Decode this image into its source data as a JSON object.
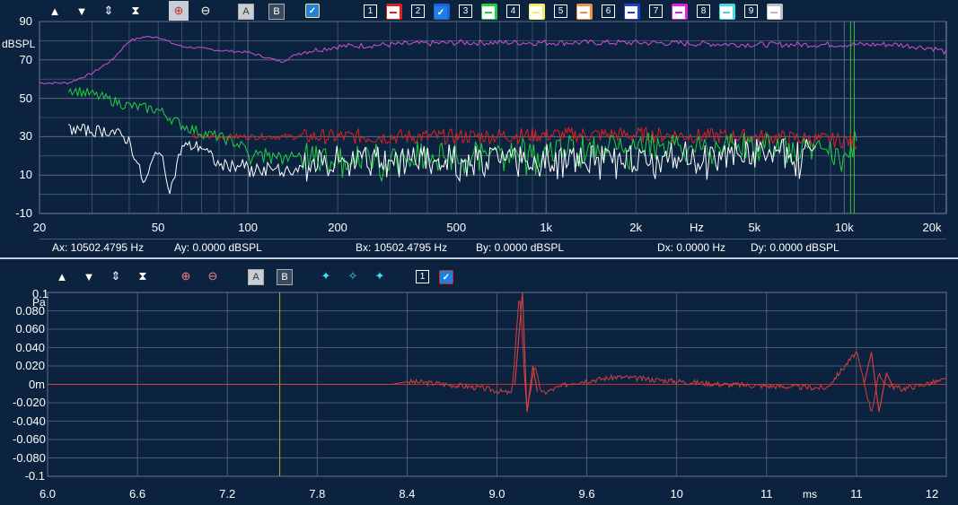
{
  "colors": {
    "background": "#0c2340",
    "grid": "#8a96a6",
    "trace_magenta": "#d050d0",
    "trace_red": "#e02020",
    "trace_green": "#20d040",
    "trace_white": "#ffffff",
    "trace_ir": "#d04040",
    "cursor_green": "#40c040"
  },
  "top_toolbar": {
    "icons": [
      "move-up-icon",
      "move-down-icon",
      "expand-vertical-icon",
      "fit-vertical-icon",
      "zoom-in-icon",
      "zoom-out-icon"
    ],
    "cursor_a": "A",
    "cursor_b": "B",
    "channels": [
      {
        "num": "1",
        "color": "#e02020",
        "checked": false
      },
      {
        "num": "2",
        "color": "#2060e0",
        "checked": true
      },
      {
        "num": "3",
        "color": "#20d040",
        "checked": false
      },
      {
        "num": "4",
        "color": "#f0f060",
        "checked": false
      },
      {
        "num": "5",
        "color": "#f09040",
        "checked": false
      },
      {
        "num": "6",
        "color": "#2040d0",
        "checked": false
      },
      {
        "num": "7",
        "color": "#e020e0",
        "checked": false
      },
      {
        "num": "8",
        "color": "#40e0e0",
        "checked": false
      },
      {
        "num": "9",
        "color": "#c0c0c0",
        "checked": false
      }
    ]
  },
  "freq_chart": {
    "y_unit": "dBSPL",
    "y_ticks": [
      "90",
      "70",
      "50",
      "30",
      "10",
      "-10"
    ],
    "x_ticks": [
      "20",
      "50",
      "100",
      "200",
      "500",
      "1k",
      "2k",
      "Hz",
      "5k",
      "10k",
      "20k"
    ],
    "x_unit": "Hz"
  },
  "status_bar": {
    "ax": "Ax: 10502.4795 Hz",
    "ay": "Ay: 0.0000 dBSPL",
    "bx": "Bx: 10502.4795 Hz",
    "by": "By: 0.0000 dBSPL",
    "dx": "Dx: 0.0000 Hz",
    "dy": "Dy: 0.0000 dBSPL"
  },
  "bottom_toolbar": {
    "cursor_a": "A",
    "cursor_b": "B",
    "channel_num": "1"
  },
  "ir_chart": {
    "y_unit": "Pa",
    "y_top": "0.1",
    "y_ticks": [
      "0.080",
      "0.060",
      "0.040",
      "0.020",
      "0m",
      "-0.020",
      "-0.040",
      "-0.060",
      "-0.080",
      "-0.1"
    ],
    "x_ticks": [
      "6.0",
      "6.6",
      "7.2",
      "7.8",
      "8.4",
      "9.0",
      "9.6",
      "10",
      "11",
      "11",
      "12"
    ],
    "x_unit": "ms"
  },
  "chart_data": [
    {
      "type": "line",
      "title": "",
      "xlabel": "Hz",
      "ylabel": "dBSPL",
      "x_scale": "log",
      "xlim": [
        20,
        22000
      ],
      "ylim": [
        -10,
        90
      ],
      "grid": true,
      "series": [
        {
          "color": "#d050d0",
          "x": [
            20,
            25,
            30,
            35,
            40,
            45,
            50,
            55,
            60,
            70,
            80,
            100,
            130,
            150,
            200,
            300,
            500,
            1000,
            2000,
            5000,
            10000,
            15000,
            20000,
            22000
          ],
          "y": [
            58,
            58,
            63,
            70,
            80,
            82,
            82,
            79,
            77,
            76,
            75,
            74,
            69,
            74,
            77,
            78,
            79,
            79,
            79,
            78,
            78,
            78,
            76,
            74
          ]
        },
        {
          "color": "#e02020",
          "x": [
            65,
            100,
            200,
            500,
            1000,
            2000,
            5000,
            10000,
            11000
          ],
          "y": [
            30,
            30,
            30,
            30,
            31,
            31,
            30,
            28,
            27
          ]
        },
        {
          "color": "#20d040",
          "x": [
            25,
            30,
            40,
            50,
            60,
            70,
            80,
            100,
            200,
            500,
            1000,
            2000,
            5000,
            10000,
            11000
          ],
          "y": [
            55,
            52,
            46,
            44,
            36,
            32,
            30,
            24,
            20,
            22,
            24,
            26,
            26,
            26,
            26
          ]
        },
        {
          "color": "#ffffff",
          "x": [
            25,
            30,
            35,
            40,
            45,
            50,
            55,
            60,
            70,
            80,
            100,
            150,
            200,
            500,
            1000,
            2000,
            5000,
            8000
          ],
          "y": [
            34,
            33,
            33,
            28,
            5,
            25,
            2,
            25,
            25,
            15,
            15,
            15,
            18,
            20,
            20,
            20,
            22,
            23
          ]
        }
      ]
    },
    {
      "type": "line",
      "title": "",
      "xlabel": "ms",
      "ylabel": "Pa",
      "xlim": [
        6.0,
        12.0
      ],
      "ylim": [
        -0.1,
        0.1
      ],
      "grid": true,
      "series": [
        {
          "color": "#d04040",
          "x": [
            6.0,
            8.3,
            8.4,
            8.6,
            8.9,
            9.1,
            9.15,
            9.2,
            9.25,
            9.3,
            9.5,
            9.8,
            10.5,
            11.2,
            11.4,
            11.5,
            11.55,
            11.6,
            11.7,
            12.0
          ],
          "y": [
            0,
            0,
            0.003,
            0.001,
            -0.004,
            -0.01,
            0.1,
            -0.03,
            0.02,
            -0.01,
            0.002,
            0.008,
            0.0,
            -0.004,
            0.035,
            -0.03,
            0.01,
            0.0,
            -0.005,
            0.005
          ]
        }
      ]
    }
  ]
}
